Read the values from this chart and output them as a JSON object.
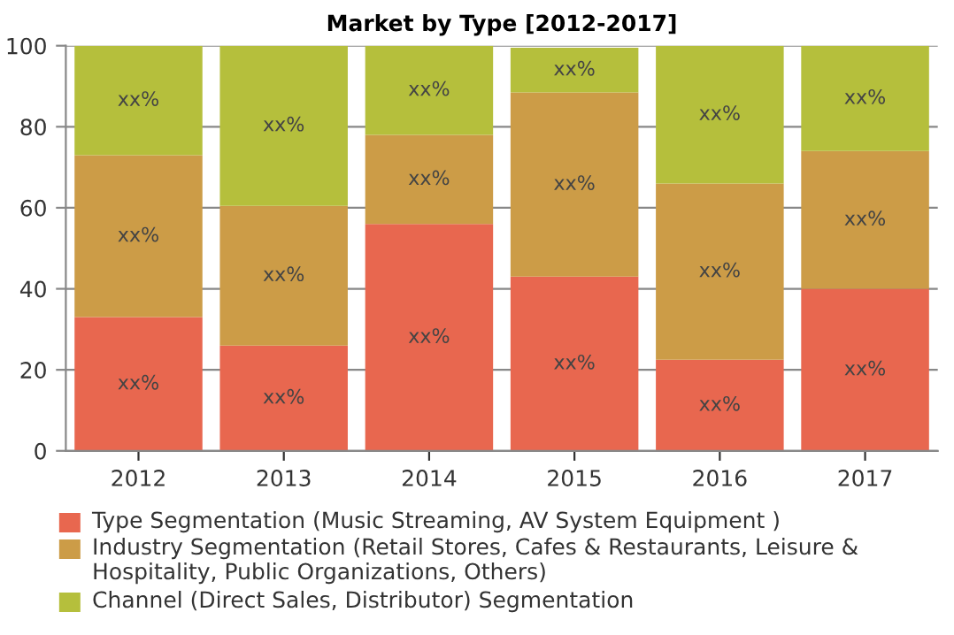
{
  "chart_data": {
    "type": "bar",
    "stacked": true,
    "title": "Market by Type [2012-2017]",
    "categories": [
      "2012",
      "2013",
      "2014",
      "2015",
      "2016",
      "2017"
    ],
    "series": [
      {
        "name": "Type Segmentation (Music Streaming, AV System Equipment )",
        "color": "#e8674f",
        "values": [
          33,
          26,
          56,
          43,
          22.5,
          40
        ],
        "value_labels": [
          "xx%",
          "xx%",
          "xx%",
          "xx%",
          "xx%",
          "xx%"
        ]
      },
      {
        "name": "Industry Segmentation (Retail Stores, Cafes & Restaurants, Leisure & Hospitality, Public Organizations, Others)",
        "color": "#cc9c47",
        "values": [
          40,
          34.5,
          22,
          45.5,
          43.5,
          34
        ],
        "value_labels": [
          "xx%",
          "xx%",
          "xx%",
          "xx%",
          "xx%",
          "xx%"
        ]
      },
      {
        "name": "Channel (Direct Sales, Distributor) Segmentation",
        "color": "#b5bf3c",
        "values": [
          27,
          39.5,
          22,
          11,
          34,
          26
        ],
        "value_labels": [
          "xx%",
          "xx%",
          "xx%",
          "xx%",
          "xx%",
          "xx%"
        ]
      }
    ],
    "ylim": [
      0,
      100
    ],
    "yticks": [
      0,
      20,
      40,
      60,
      80,
      100
    ],
    "grid": "y",
    "legend": "bottom"
  }
}
